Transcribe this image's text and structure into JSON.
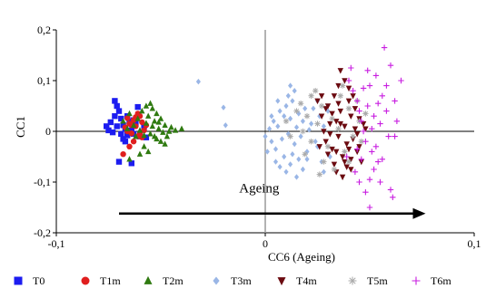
{
  "chart_data": {
    "type": "scatter",
    "xlabel": "CC6 (Ageing)",
    "ylabel": "CC1",
    "xlim": [
      -0.1,
      0.1
    ],
    "ylim": [
      -0.2,
      0.2
    ],
    "x_ticks": [
      "-0,1",
      "0",
      "0,1"
    ],
    "y_ticks": [
      "0,2",
      "0,1",
      "0",
      "-0,1",
      "-0,2"
    ],
    "grid": false,
    "legend_position": "bottom",
    "annotation": {
      "text": "Ageing",
      "arrow_from": [
        -0.07,
        -0.162
      ],
      "arrow_to": [
        0.075,
        -0.162
      ]
    },
    "series": [
      {
        "name": "T0",
        "marker": "square",
        "color": "#1c1cf0",
        "points": [
          [
            -0.076,
            0.01
          ],
          [
            -0.075,
            0.002
          ],
          [
            -0.074,
            0.018
          ],
          [
            -0.073,
            -0.002
          ],
          [
            -0.072,
            0.06
          ],
          [
            -0.071,
            0.05
          ],
          [
            -0.072,
            0.03
          ],
          [
            -0.07,
            0.04
          ],
          [
            -0.069,
            0.025
          ],
          [
            -0.068,
            0.012
          ],
          [
            -0.067,
            0.005
          ],
          [
            -0.066,
            -0.008
          ],
          [
            -0.068,
            -0.015
          ],
          [
            -0.067,
            -0.02
          ],
          [
            -0.065,
            0.02
          ],
          [
            -0.064,
            0.002
          ],
          [
            -0.063,
            -0.005
          ],
          [
            -0.062,
            0.015
          ],
          [
            -0.061,
            0.048
          ],
          [
            -0.07,
            -0.06
          ],
          [
            -0.064,
            -0.063
          ],
          [
            -0.066,
            0.03
          ],
          [
            -0.069,
            -0.005
          ],
          [
            -0.063,
            0.022
          ],
          [
            -0.058,
            0.01
          ],
          [
            -0.06,
            -0.01
          ],
          [
            -0.057,
            -0.012
          ],
          [
            -0.071,
            0.01
          ],
          [
            -0.066,
            -0.002
          ]
        ]
      },
      {
        "name": "T1m",
        "marker": "circle",
        "color": "#e01e1e",
        "points": [
          [
            -0.067,
            0.008
          ],
          [
            -0.066,
            0.026
          ],
          [
            -0.065,
            0.015
          ],
          [
            -0.064,
            -0.004
          ],
          [
            -0.063,
            0.022
          ],
          [
            -0.062,
            0.01
          ],
          [
            -0.061,
            -0.01
          ],
          [
            -0.06,
            0.03
          ],
          [
            -0.059,
            0.018
          ],
          [
            -0.058,
            0.002
          ],
          [
            -0.063,
            -0.02
          ],
          [
            -0.061,
            0.035
          ],
          [
            -0.06,
            -0.005
          ],
          [
            -0.065,
            -0.03
          ],
          [
            -0.057,
            0.012
          ],
          [
            -0.062,
            0.028
          ],
          [
            -0.068,
            -0.045
          ],
          [
            -0.064,
            0.012
          ],
          [
            -0.059,
            -0.012
          ],
          [
            -0.066,
            0.0
          ]
        ]
      },
      {
        "name": "T2m",
        "marker": "triangle",
        "color": "#2f7a10",
        "points": [
          [
            -0.068,
            0.02
          ],
          [
            -0.066,
            0.005
          ],
          [
            -0.065,
            0.035
          ],
          [
            -0.063,
            0.012
          ],
          [
            -0.062,
            -0.01
          ],
          [
            -0.061,
            0.025
          ],
          [
            -0.06,
            0.002
          ],
          [
            -0.059,
            0.04
          ],
          [
            -0.058,
            -0.008
          ],
          [
            -0.057,
            0.016
          ],
          [
            -0.056,
            0.03
          ],
          [
            -0.055,
            -0.005
          ],
          [
            -0.054,
            0.01
          ],
          [
            -0.053,
            0.02
          ],
          [
            -0.052,
            -0.015
          ],
          [
            -0.051,
            0.005
          ],
          [
            -0.05,
            0.025
          ],
          [
            -0.049,
            -0.002
          ],
          [
            -0.048,
            0.012
          ],
          [
            -0.047,
            -0.01
          ],
          [
            -0.046,
            0.0
          ],
          [
            -0.045,
            0.008
          ],
          [
            -0.043,
            0.002
          ],
          [
            -0.04,
            0.005
          ],
          [
            -0.055,
            0.055
          ],
          [
            -0.054,
            0.045
          ],
          [
            -0.052,
            0.035
          ],
          [
            -0.05,
            -0.02
          ],
          [
            -0.048,
            -0.025
          ],
          [
            -0.058,
            -0.03
          ],
          [
            -0.06,
            -0.045
          ],
          [
            -0.065,
            -0.055
          ],
          [
            -0.056,
            -0.04
          ],
          [
            -0.053,
            -0.01
          ],
          [
            -0.051,
            0.018
          ],
          [
            -0.057,
            0.05
          ]
        ]
      },
      {
        "name": "T3m",
        "marker": "diamond",
        "color": "#9ab6e6",
        "points": [
          [
            -0.032,
            0.098
          ],
          [
            -0.02,
            0.047
          ],
          [
            -0.019,
            0.012
          ],
          [
            0.0,
            -0.01
          ],
          [
            0.002,
            0.005
          ],
          [
            0.003,
            -0.02
          ],
          [
            0.004,
            0.02
          ],
          [
            0.005,
            -0.035
          ],
          [
            0.006,
            0.01
          ],
          [
            0.007,
            0.04
          ],
          [
            0.008,
            -0.015
          ],
          [
            0.009,
            0.03
          ],
          [
            0.01,
            0.05
          ],
          [
            0.011,
            -0.005
          ],
          [
            0.012,
            0.025
          ],
          [
            0.013,
            0.06
          ],
          [
            0.014,
            -0.025
          ],
          [
            0.015,
            0.008
          ],
          [
            0.016,
            0.035
          ],
          [
            0.017,
            -0.01
          ],
          [
            0.018,
            0.02
          ],
          [
            0.019,
            0.045
          ],
          [
            0.02,
            -0.04
          ],
          [
            0.021,
            0.003
          ],
          [
            0.022,
            0.015
          ],
          [
            0.024,
            -0.02
          ],
          [
            0.026,
            0.03
          ],
          [
            0.028,
            0.01
          ],
          [
            0.005,
            -0.06
          ],
          [
            0.007,
            -0.07
          ],
          [
            0.01,
            -0.08
          ],
          [
            0.012,
            -0.065
          ],
          [
            0.015,
            -0.09
          ],
          [
            0.018,
            -0.075
          ],
          [
            0.02,
            -0.055
          ],
          [
            0.013,
            -0.045
          ],
          [
            0.009,
            -0.05
          ],
          [
            0.014,
            0.08
          ],
          [
            0.012,
            0.09
          ],
          [
            0.025,
            0.06
          ],
          [
            0.03,
            0.04
          ],
          [
            0.027,
            -0.06
          ],
          [
            0.028,
            -0.08
          ],
          [
            0.031,
            -0.05
          ],
          [
            0.003,
            0.03
          ],
          [
            0.006,
            0.06
          ],
          [
            0.011,
            0.07
          ],
          [
            0.016,
            -0.055
          ],
          [
            0.001,
            -0.04
          ],
          [
            0.023,
            0.045
          ],
          [
            0.025,
            -0.03
          ]
        ]
      },
      {
        "name": "T4m",
        "marker": "triangle-down",
        "color": "#6b0a10",
        "points": [
          [
            0.025,
            0.06
          ],
          [
            0.027,
            0.03
          ],
          [
            0.028,
            0.0
          ],
          [
            0.029,
            -0.02
          ],
          [
            0.03,
            0.05
          ],
          [
            0.031,
            0.015
          ],
          [
            0.032,
            -0.035
          ],
          [
            0.033,
            0.07
          ],
          [
            0.034,
            0.02
          ],
          [
            0.035,
            -0.01
          ],
          [
            0.036,
            0.04
          ],
          [
            0.037,
            -0.05
          ],
          [
            0.038,
            0.01
          ],
          [
            0.039,
            -0.025
          ],
          [
            0.04,
            0.06
          ],
          [
            0.041,
            0.03
          ],
          [
            0.042,
            -0.015
          ],
          [
            0.043,
            0.005
          ],
          [
            0.044,
            -0.04
          ],
          [
            0.045,
            0.025
          ],
          [
            0.046,
            -0.06
          ],
          [
            0.047,
            0.015
          ],
          [
            0.036,
            0.12
          ],
          [
            0.035,
            0.09
          ],
          [
            0.038,
            0.1
          ],
          [
            0.034,
            -0.08
          ],
          [
            0.037,
            -0.09
          ],
          [
            0.033,
            -0.065
          ],
          [
            0.039,
            -0.07
          ],
          [
            0.041,
            -0.055
          ],
          [
            0.03,
            -0.045
          ],
          [
            0.032,
            0.035
          ],
          [
            0.035,
            0.055
          ],
          [
            0.04,
            0.085
          ],
          [
            0.043,
            0.045
          ],
          [
            0.044,
            -0.005
          ],
          [
            0.031,
            -0.005
          ],
          [
            0.029,
            0.045
          ],
          [
            0.045,
            -0.03
          ],
          [
            0.038,
            -0.06
          ],
          [
            0.026,
            -0.03
          ],
          [
            0.027,
            0.07
          ],
          [
            0.042,
            0.07
          ],
          [
            0.036,
            0.015
          ],
          [
            0.034,
            -0.04
          ],
          [
            0.04,
            -0.035
          ],
          [
            0.048,
            0.005
          ],
          [
            0.041,
            -0.075
          ]
        ]
      },
      {
        "name": "T5m",
        "marker": "asterisk",
        "color": "#aaaaaa",
        "points": [
          [
            0.01,
            0.02
          ],
          [
            0.012,
            -0.01
          ],
          [
            0.015,
            0.04
          ],
          [
            0.018,
            0.0
          ],
          [
            0.02,
            0.03
          ],
          [
            0.022,
            -0.02
          ],
          [
            0.025,
            0.015
          ],
          [
            0.027,
            0.05
          ],
          [
            0.03,
            -0.03
          ],
          [
            0.032,
            0.025
          ],
          [
            0.035,
            0.005
          ],
          [
            0.038,
            -0.04
          ],
          [
            0.04,
            0.045
          ],
          [
            0.042,
            -0.01
          ],
          [
            0.045,
            0.02
          ],
          [
            0.024,
            0.08
          ],
          [
            0.022,
            0.07
          ],
          [
            0.028,
            -0.06
          ],
          [
            0.033,
            -0.075
          ],
          [
            0.036,
            0.07
          ],
          [
            0.04,
            -0.06
          ],
          [
            0.046,
            -0.02
          ],
          [
            0.048,
            0.035
          ],
          [
            0.019,
            -0.045
          ],
          [
            0.017,
            0.055
          ],
          [
            0.044,
            0.06
          ],
          [
            0.037,
            0.09
          ],
          [
            0.026,
            -0.085
          ]
        ]
      },
      {
        "name": "T6m",
        "marker": "plus",
        "color": "#c81ee0",
        "points": [
          [
            0.04,
            0.1
          ],
          [
            0.042,
            0.08
          ],
          [
            0.044,
            0.06
          ],
          [
            0.045,
            0.04
          ],
          [
            0.046,
            0.02
          ],
          [
            0.047,
            0.0
          ],
          [
            0.048,
            -0.02
          ],
          [
            0.049,
            0.05
          ],
          [
            0.05,
            0.09
          ],
          [
            0.051,
            -0.04
          ],
          [
            0.052,
            0.03
          ],
          [
            0.053,
            0.11
          ],
          [
            0.054,
            -0.06
          ],
          [
            0.055,
            0.015
          ],
          [
            0.056,
            0.07
          ],
          [
            0.057,
            0.165
          ],
          [
            0.058,
            0.04
          ],
          [
            0.059,
            -0.01
          ],
          [
            0.06,
            0.13
          ],
          [
            0.062,
            0.06
          ],
          [
            0.063,
            0.02
          ],
          [
            0.065,
            0.1
          ],
          [
            0.043,
            -0.08
          ],
          [
            0.045,
            -0.1
          ],
          [
            0.048,
            -0.12
          ],
          [
            0.05,
            -0.095
          ],
          [
            0.052,
            -0.075
          ],
          [
            0.055,
            -0.1
          ],
          [
            0.06,
            -0.115
          ],
          [
            0.061,
            -0.13
          ],
          [
            0.046,
            -0.055
          ],
          [
            0.041,
            0.125
          ],
          [
            0.047,
            0.085
          ],
          [
            0.053,
            -0.03
          ],
          [
            0.058,
            0.09
          ],
          [
            0.044,
            -0.035
          ],
          [
            0.049,
            0.12
          ],
          [
            0.051,
            0.005
          ],
          [
            0.054,
            0.055
          ],
          [
            0.05,
            -0.15
          ],
          [
            0.039,
            -0.05
          ],
          [
            0.062,
            -0.01
          ],
          [
            0.056,
            -0.055
          ]
        ]
      }
    ]
  }
}
